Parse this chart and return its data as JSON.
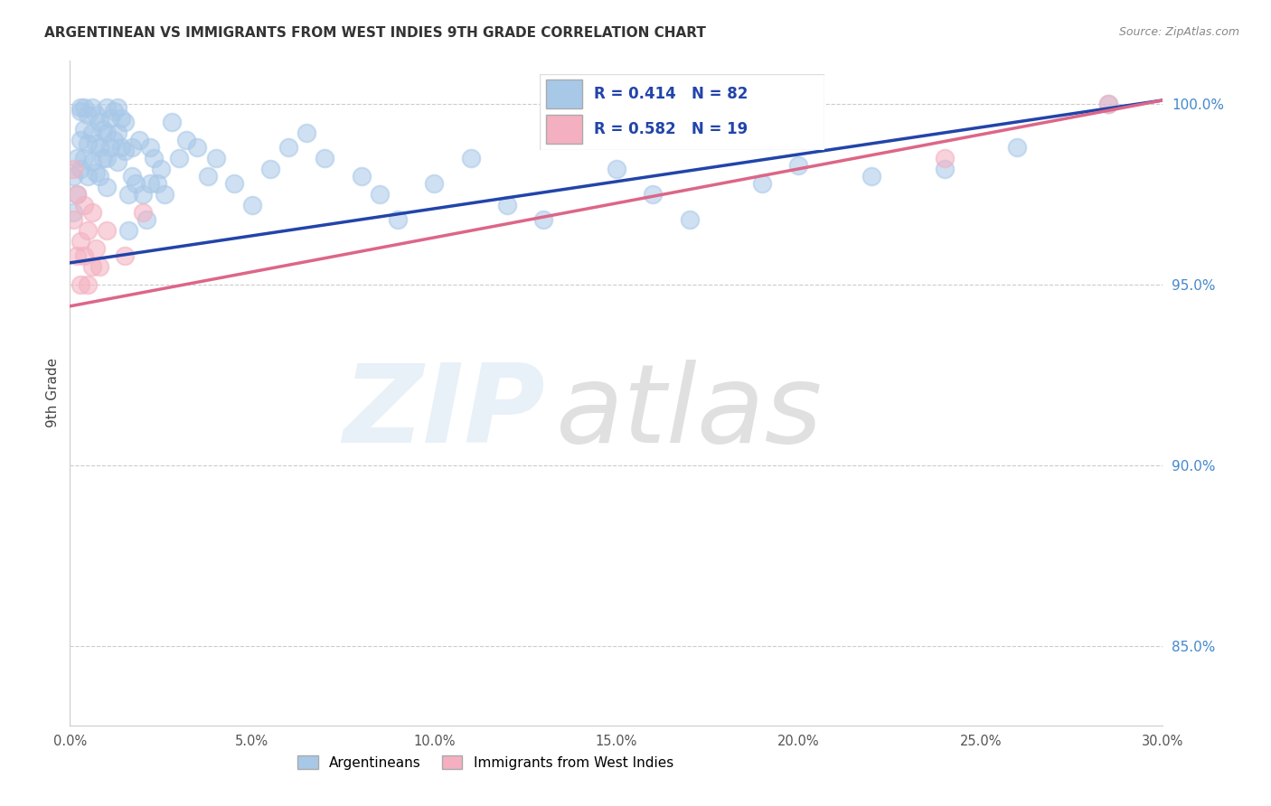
{
  "title": "ARGENTINEAN VS IMMIGRANTS FROM WEST INDIES 9TH GRADE CORRELATION CHART",
  "source": "Source: ZipAtlas.com",
  "ylabel": "9th Grade",
  "yticks": [
    0.85,
    0.9,
    0.95,
    1.0
  ],
  "ytick_labels": [
    "85.0%",
    "90.0%",
    "95.0%",
    "100.0%"
  ],
  "xticks": [
    0.0,
    0.05,
    0.1,
    0.15,
    0.2,
    0.25,
    0.3
  ],
  "xtick_labels": [
    "0.0%",
    "5.0%",
    "10.0%",
    "15.0%",
    "20.0%",
    "25.0%",
    "30.0%"
  ],
  "xmin": 0.0,
  "xmax": 0.3,
  "ymin": 0.828,
  "ymax": 1.012,
  "blue_R": 0.414,
  "blue_N": 82,
  "pink_R": 0.582,
  "pink_N": 19,
  "blue_color": "#a8c8e8",
  "pink_color": "#f4b0c0",
  "blue_line_color": "#2244aa",
  "pink_line_color": "#dd6688",
  "legend_label_blue": "Argentineans",
  "legend_label_pink": "Immigrants from West Indies",
  "blue_line_x0": 0.0,
  "blue_line_y0": 0.956,
  "blue_line_x1": 0.3,
  "blue_line_y1": 1.001,
  "pink_line_x0": 0.0,
  "pink_line_y0": 0.944,
  "pink_line_x1": 0.3,
  "pink_line_y1": 1.001,
  "blue_points_x": [
    0.001,
    0.001,
    0.002,
    0.002,
    0.003,
    0.003,
    0.003,
    0.004,
    0.004,
    0.005,
    0.005,
    0.005,
    0.006,
    0.006,
    0.006,
    0.007,
    0.007,
    0.007,
    0.008,
    0.008,
    0.008,
    0.009,
    0.009,
    0.01,
    0.01,
    0.01,
    0.01,
    0.011,
    0.011,
    0.012,
    0.012,
    0.013,
    0.013,
    0.013,
    0.014,
    0.014,
    0.015,
    0.015,
    0.016,
    0.016,
    0.017,
    0.017,
    0.018,
    0.019,
    0.02,
    0.021,
    0.022,
    0.022,
    0.023,
    0.024,
    0.025,
    0.026,
    0.028,
    0.03,
    0.032,
    0.035,
    0.038,
    0.04,
    0.045,
    0.05,
    0.055,
    0.06,
    0.065,
    0.07,
    0.08,
    0.085,
    0.09,
    0.1,
    0.11,
    0.12,
    0.13,
    0.15,
    0.16,
    0.17,
    0.19,
    0.2,
    0.22,
    0.24,
    0.26,
    0.285,
    0.003,
    0.004
  ],
  "blue_points_y": [
    0.98,
    0.97,
    0.985,
    0.975,
    0.998,
    0.99,
    0.982,
    0.993,
    0.985,
    0.997,
    0.989,
    0.98,
    0.999,
    0.992,
    0.984,
    0.997,
    0.989,
    0.981,
    0.995,
    0.988,
    0.98,
    0.993,
    0.985,
    0.999,
    0.992,
    0.985,
    0.977,
    0.996,
    0.988,
    0.998,
    0.99,
    0.999,
    0.992,
    0.984,
    0.996,
    0.988,
    0.995,
    0.987,
    0.975,
    0.965,
    0.988,
    0.98,
    0.978,
    0.99,
    0.975,
    0.968,
    0.988,
    0.978,
    0.985,
    0.978,
    0.982,
    0.975,
    0.995,
    0.985,
    0.99,
    0.988,
    0.98,
    0.985,
    0.978,
    0.972,
    0.982,
    0.988,
    0.992,
    0.985,
    0.98,
    0.975,
    0.968,
    0.978,
    0.985,
    0.972,
    0.968,
    0.982,
    0.975,
    0.968,
    0.978,
    0.983,
    0.98,
    0.982,
    0.988,
    1.0,
    0.999,
    0.999
  ],
  "pink_points_x": [
    0.001,
    0.001,
    0.002,
    0.002,
    0.003,
    0.003,
    0.004,
    0.004,
    0.005,
    0.005,
    0.006,
    0.006,
    0.007,
    0.008,
    0.01,
    0.015,
    0.02,
    0.285,
    0.24
  ],
  "pink_points_y": [
    0.982,
    0.968,
    0.975,
    0.958,
    0.962,
    0.95,
    0.972,
    0.958,
    0.965,
    0.95,
    0.97,
    0.955,
    0.96,
    0.955,
    0.965,
    0.958,
    0.97,
    1.0,
    0.985
  ]
}
